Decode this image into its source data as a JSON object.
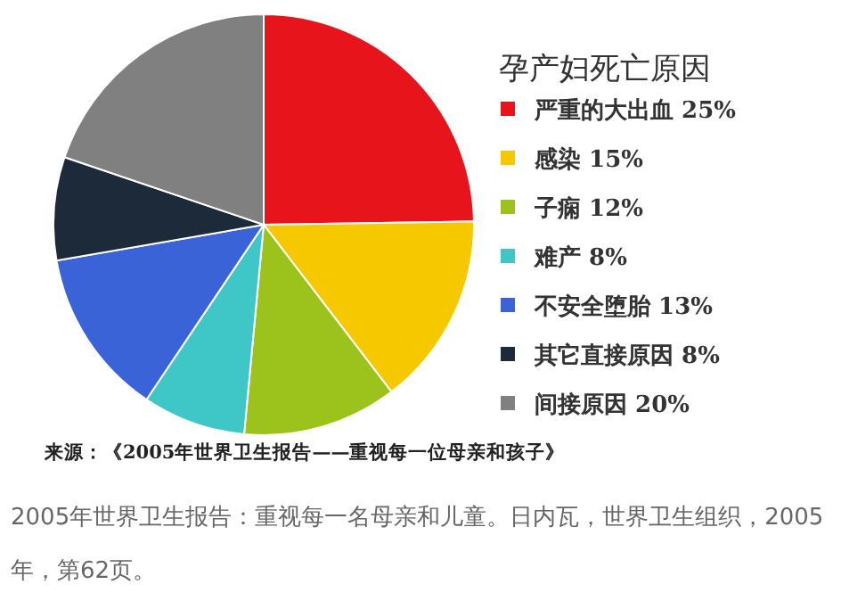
{
  "chart_data": {
    "type": "pie",
    "title": "孕产妇死亡原因",
    "categories": [
      "严重的大出血",
      "感染",
      "子痫",
      "难产",
      "不安全堕胎",
      "其它直接原因",
      "间接原因"
    ],
    "values": [
      25,
      15,
      12,
      8,
      13,
      8,
      20
    ],
    "value_labels": [
      "25%",
      "15%",
      "12%",
      "8%",
      "13%",
      "8%",
      "20%"
    ],
    "colors": [
      "#e8141b",
      "#f5c800",
      "#9bc31c",
      "#3fc6c6",
      "#3a63d8",
      "#1c2a3a",
      "#808080"
    ],
    "legend": "right",
    "annotations": [
      "来源：《2005年世界卫生报告——重视每一位母亲和孩子》",
      "2005年世界卫生报告：重视每一名母亲和儿童。日内瓦，世界卫生组织，2005年，第62页。"
    ]
  }
}
